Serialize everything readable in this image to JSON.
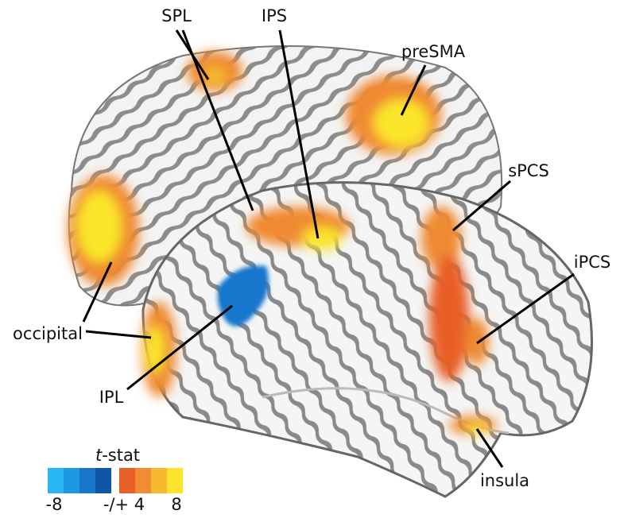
{
  "labels": [
    "SPL",
    "IPS",
    "preSMA",
    "sPCS",
    "iPCS",
    "occipital",
    "IPL",
    "insula"
  ],
  "colorbar": {
    "title": {
      "italic": "t",
      "rest": "-stat"
    },
    "negative_colors": [
      "#29b6f2",
      "#1d98e4",
      "#1677cc",
      "#0f56a8"
    ],
    "positive_colors": [
      "#e85f28",
      "#f28c32",
      "#f6ba2e",
      "#fbe52c"
    ],
    "tick_labels": [
      "-8",
      "-/+ 4",
      "8"
    ]
  }
}
